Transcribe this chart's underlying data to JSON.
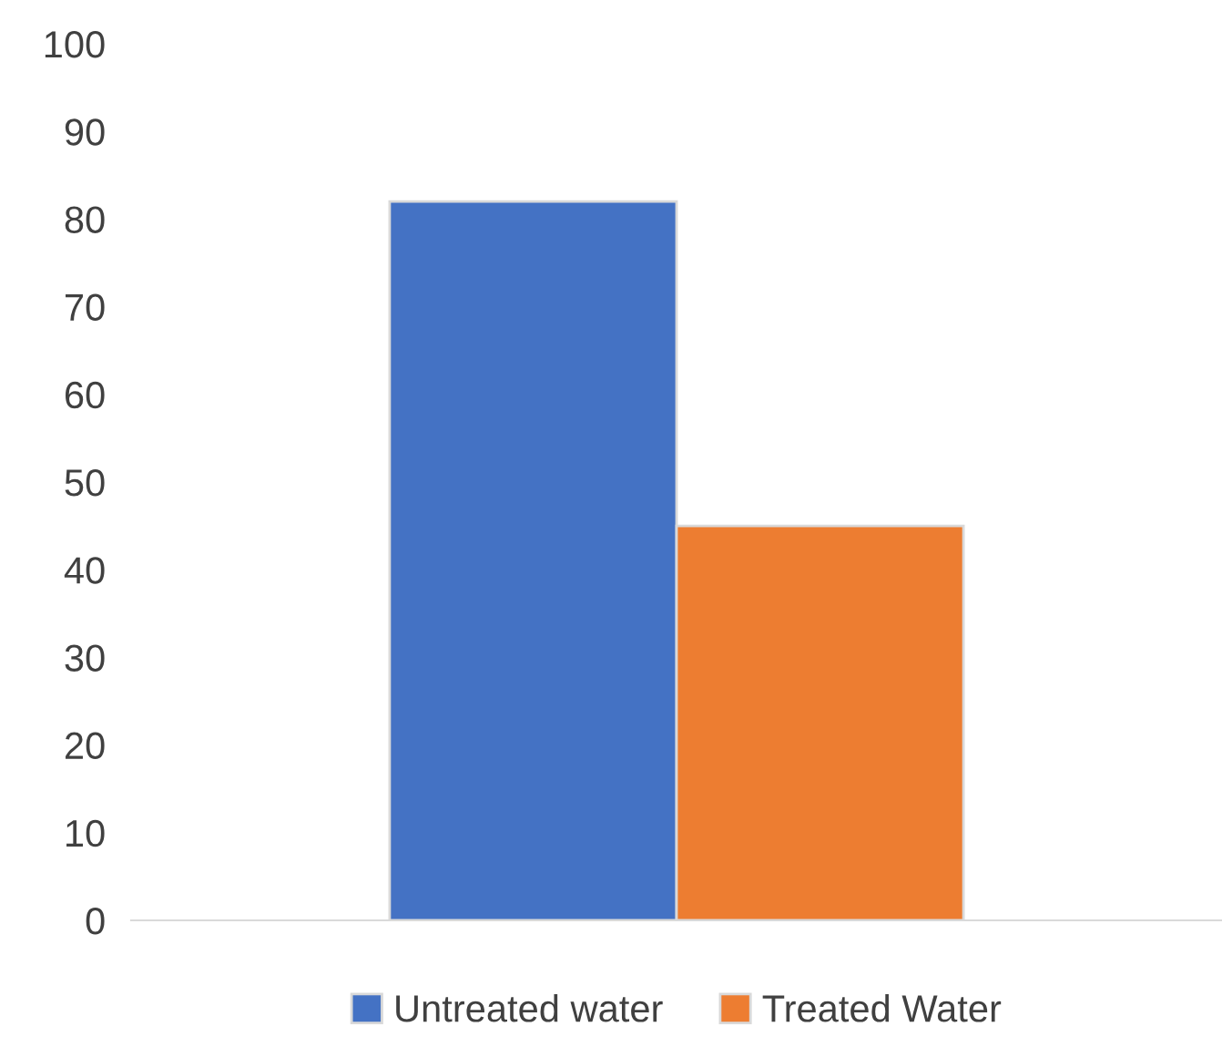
{
  "chart_data": {
    "type": "bar",
    "categories": [
      null
    ],
    "series": [
      {
        "name": "Untreated water",
        "color": "#4472c4",
        "values": [
          82
        ]
      },
      {
        "name": "Treated Water",
        "color": "#ed7d31",
        "values": [
          45
        ]
      }
    ],
    "ylim": [
      0,
      100
    ],
    "yticks": [
      0,
      10,
      20,
      30,
      40,
      50,
      60,
      70,
      80,
      90,
      100
    ],
    "grid": false,
    "legend": "bottom"
  }
}
